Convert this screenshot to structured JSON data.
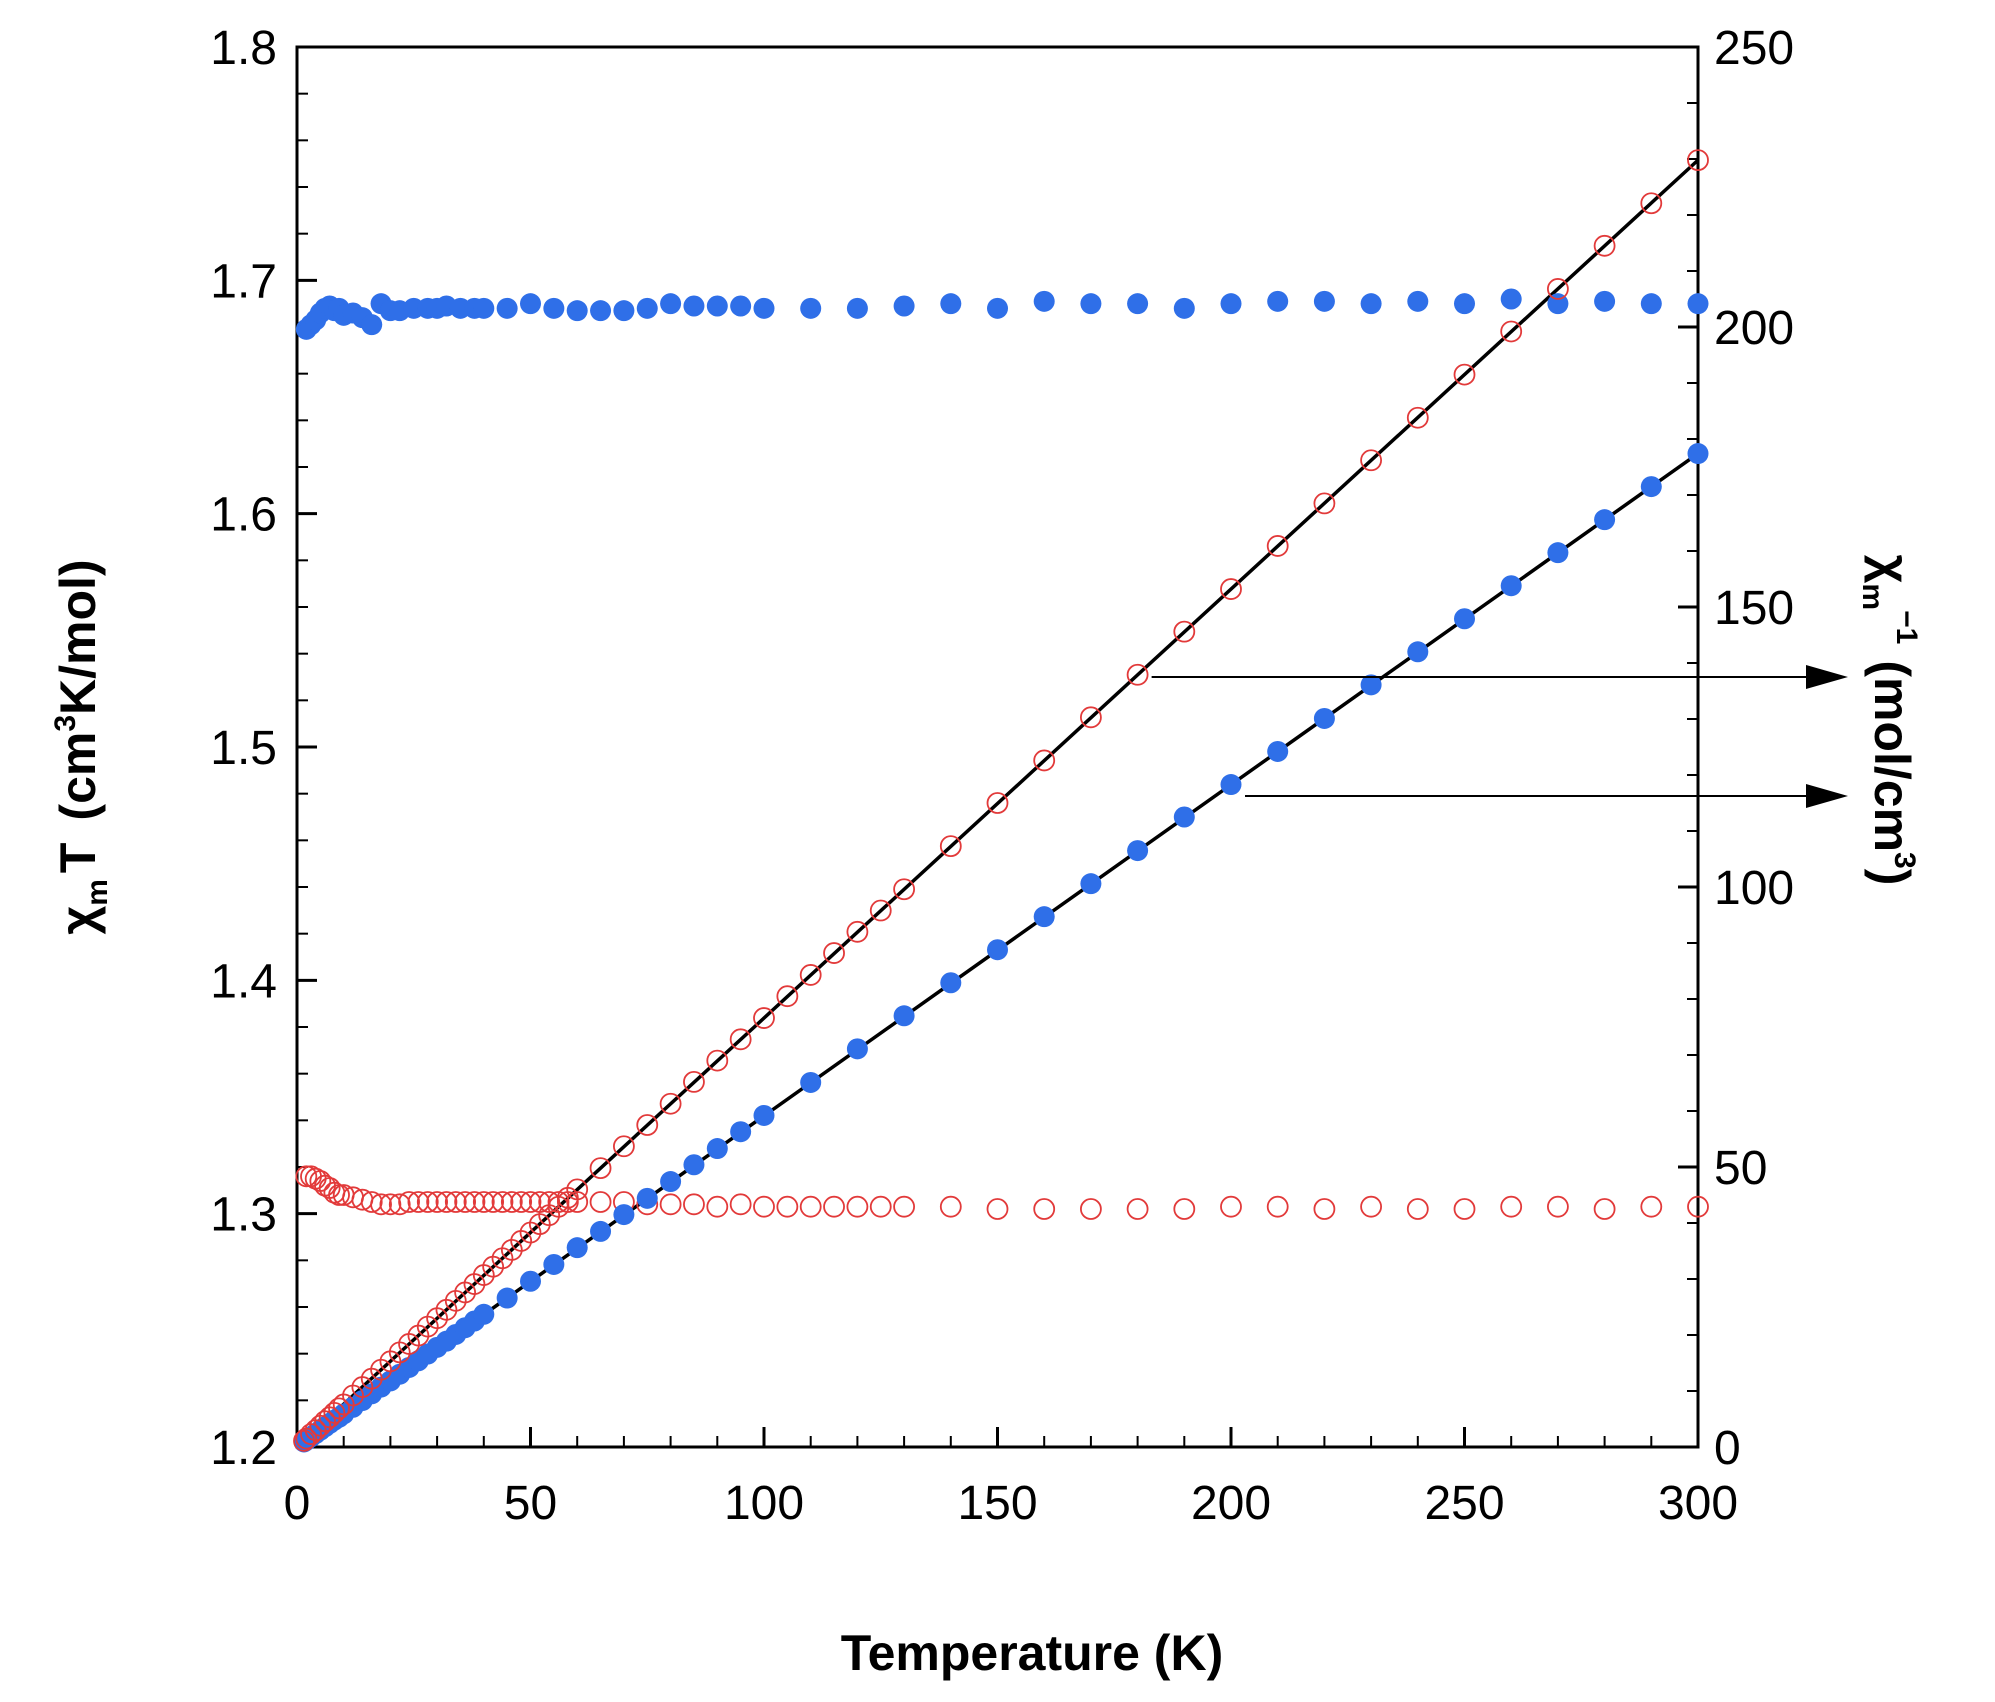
{
  "chart_data": {
    "type": "scatter",
    "title": "",
    "xlabel": "Temperature (K)",
    "ylabel_left": {
      "chi": "χ",
      "sub": "m",
      "T": "T",
      "paren_open": "(cm",
      "sup": "3",
      "rest": "K/mol)"
    },
    "ylabel_right": {
      "chi": "χ",
      "sub": "m",
      "sup": "−1",
      "paren_open": "(mol/cm",
      "sup2": "3",
      "close": ")"
    },
    "xlim": [
      0,
      300
    ],
    "ylim_left": [
      1.2,
      1.8
    ],
    "ylim_right": [
      0,
      250
    ],
    "x_ticks": [
      "0",
      "50",
      "100",
      "150",
      "200",
      "250",
      "300"
    ],
    "y_left_ticks": [
      "1.2",
      "1.3",
      "1.4",
      "1.5",
      "1.6",
      "1.7",
      "1.8"
    ],
    "y_right_ticks": [
      "0",
      "50",
      "100",
      "150",
      "200",
      "250"
    ],
    "colors": {
      "blue": "#2f6fe8",
      "red": "#e23a3a",
      "fit": "#000000",
      "arrow": "#000000"
    },
    "series": [
      {
        "name": "chiT_blue_filled",
        "axis": "left",
        "marker": "filled-circle",
        "color": "blue",
        "x": [
          2,
          3,
          4,
          5,
          6,
          7,
          8,
          9,
          10,
          12,
          14,
          16,
          18,
          20,
          22,
          25,
          28,
          30,
          32,
          35,
          38,
          40,
          45,
          50,
          55,
          60,
          65,
          70,
          75,
          80,
          85,
          90,
          95,
          100,
          110,
          120,
          130,
          140,
          150,
          160,
          170,
          180,
          190,
          200,
          210,
          220,
          230,
          240,
          250,
          260,
          270,
          280,
          290,
          300
        ],
        "y": [
          1.679,
          1.681,
          1.683,
          1.686,
          1.688,
          1.689,
          1.687,
          1.688,
          1.685,
          1.686,
          1.684,
          1.681,
          1.69,
          1.687,
          1.687,
          1.688,
          1.688,
          1.688,
          1.689,
          1.688,
          1.688,
          1.688,
          1.688,
          1.69,
          1.688,
          1.687,
          1.687,
          1.687,
          1.688,
          1.69,
          1.689,
          1.689,
          1.689,
          1.688,
          1.688,
          1.688,
          1.689,
          1.69,
          1.688,
          1.691,
          1.69,
          1.69,
          1.688,
          1.69,
          1.691,
          1.691,
          1.69,
          1.691,
          1.69,
          1.692,
          1.69,
          1.691,
          1.69,
          1.69
        ]
      },
      {
        "name": "chiT_red_open",
        "axis": "left",
        "marker": "open-circle",
        "color": "red",
        "x": [
          2,
          3,
          4,
          5,
          6,
          7,
          8,
          9,
          10,
          12,
          14,
          16,
          18,
          20,
          22,
          24,
          26,
          28,
          30,
          32,
          34,
          36,
          38,
          40,
          42,
          44,
          46,
          48,
          50,
          52,
          54,
          56,
          58,
          60,
          65,
          70,
          75,
          80,
          85,
          90,
          95,
          100,
          105,
          110,
          115,
          120,
          125,
          130,
          140,
          150,
          160,
          170,
          180,
          190,
          200,
          210,
          220,
          230,
          240,
          250,
          260,
          270,
          280,
          290,
          300
        ],
        "y": [
          1.316,
          1.316,
          1.315,
          1.314,
          1.312,
          1.311,
          1.309,
          1.308,
          1.308,
          1.307,
          1.306,
          1.305,
          1.304,
          1.304,
          1.304,
          1.305,
          1.305,
          1.305,
          1.305,
          1.305,
          1.305,
          1.305,
          1.305,
          1.305,
          1.305,
          1.305,
          1.305,
          1.305,
          1.305,
          1.305,
          1.305,
          1.305,
          1.305,
          1.305,
          1.305,
          1.305,
          1.304,
          1.304,
          1.304,
          1.303,
          1.304,
          1.303,
          1.303,
          1.303,
          1.303,
          1.303,
          1.303,
          1.303,
          1.303,
          1.302,
          1.302,
          1.302,
          1.302,
          1.302,
          1.303,
          1.303,
          1.302,
          1.303,
          1.302,
          1.302,
          1.303,
          1.303,
          1.302,
          1.303,
          1.303
        ]
      },
      {
        "name": "inv_chi_blue_filled",
        "axis": "right",
        "marker": "filled-circle",
        "color": "blue",
        "x": [
          1.5,
          2,
          3,
          4,
          5,
          6,
          7,
          8,
          9,
          10,
          12,
          14,
          16,
          18,
          20,
          22,
          24,
          26,
          28,
          30,
          32,
          34,
          36,
          38,
          40,
          45,
          50,
          55,
          60,
          65,
          70,
          75,
          80,
          85,
          90,
          95,
          100,
          110,
          120,
          130,
          140,
          150,
          160,
          170,
          180,
          190,
          200,
          210,
          220,
          230,
          240,
          250,
          260,
          270,
          280,
          290,
          300
        ],
        "y": [
          0.9,
          1.2,
          1.8,
          2.4,
          3.0,
          3.6,
          4.2,
          4.8,
          5.3,
          5.9,
          7.1,
          8.3,
          9.5,
          10.7,
          11.8,
          13.0,
          14.2,
          15.4,
          16.6,
          17.8,
          18.9,
          20.1,
          21.3,
          22.5,
          23.7,
          26.6,
          29.6,
          32.6,
          35.6,
          38.5,
          41.5,
          44.4,
          47.4,
          50.4,
          53.3,
          56.3,
          59.2,
          65.1,
          71.1,
          77.0,
          82.9,
          88.8,
          94.7,
          100.6,
          106.5,
          112.5,
          118.3,
          124.2,
          130.1,
          136.1,
          142.0,
          147.9,
          153.8,
          159.7,
          165.6,
          171.5,
          177.4
        ]
      },
      {
        "name": "inv_chi_red_open",
        "axis": "right",
        "marker": "open-circle",
        "color": "red",
        "x": [
          1.5,
          2,
          3,
          4,
          5,
          6,
          7,
          8,
          9,
          10,
          12,
          14,
          16,
          18,
          20,
          22,
          24,
          26,
          28,
          30,
          32,
          34,
          36,
          38,
          40,
          42,
          44,
          46,
          48,
          50,
          52,
          54,
          56,
          58,
          60,
          65,
          70,
          75,
          80,
          85,
          90,
          95,
          100,
          105,
          110,
          115,
          120,
          125,
          130,
          140,
          150,
          160,
          170,
          180,
          190,
          200,
          210,
          220,
          230,
          240,
          250,
          260,
          270,
          280,
          290,
          300
        ],
        "y": [
          1.1,
          1.5,
          2.3,
          3.0,
          3.8,
          4.6,
          5.3,
          6.1,
          6.9,
          7.6,
          9.2,
          10.7,
          12.2,
          13.8,
          15.3,
          16.9,
          18.4,
          19.9,
          21.5,
          23.0,
          24.5,
          26.1,
          27.6,
          29.1,
          30.7,
          32.2,
          33.7,
          35.2,
          36.8,
          38.3,
          39.8,
          41.4,
          42.9,
          44.5,
          46.0,
          49.8,
          53.7,
          57.5,
          61.3,
          65.2,
          69.0,
          72.8,
          76.6,
          80.5,
          84.3,
          88.2,
          92.0,
          95.8,
          99.6,
          107.3,
          115.0,
          122.6,
          130.3,
          137.9,
          145.6,
          153.2,
          160.9,
          168.5,
          176.2,
          183.8,
          191.5,
          199.2,
          206.8,
          214.5,
          222.1,
          229.8
        ]
      }
    ],
    "fit_lines": [
      {
        "name": "fit_red",
        "axis": "right",
        "x": [
          0,
          300
        ],
        "y": [
          0,
          229.8
        ]
      },
      {
        "name": "fit_blue",
        "axis": "right",
        "x": [
          0,
          300
        ],
        "y": [
          0,
          177.4
        ]
      }
    ],
    "arrows": [
      {
        "name": "arrow_red_to_right_axis",
        "from": {
          "x": 183,
          "axis": "left",
          "y": 1.53
        },
        "to": "right-axis"
      },
      {
        "name": "arrow_blue_to_right_axis",
        "from": {
          "x": 203,
          "axis": "left",
          "y": 1.479
        },
        "to": "right-axis"
      }
    ]
  }
}
